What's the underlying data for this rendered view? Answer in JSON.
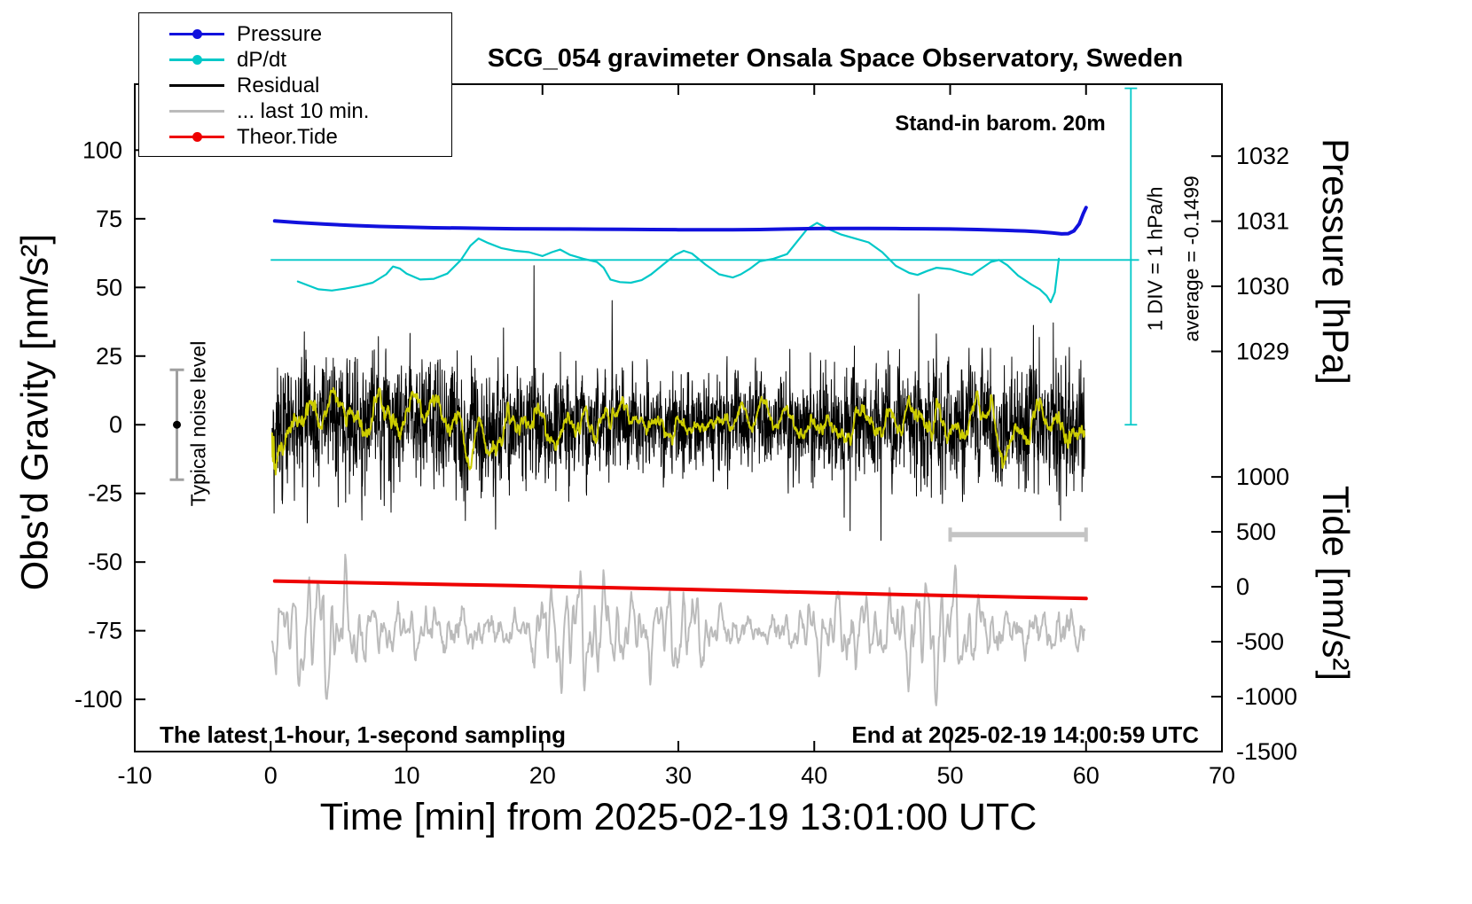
{
  "chart_data": {
    "type": "line",
    "title": "SCG_054 gravimeter Onsala Space Observatory, Sweden",
    "axes": {
      "x": {
        "label": "Time [min] from 2025-02-19 13:01:00 UTC",
        "range": [
          -10,
          70
        ],
        "ticks": [
          -10,
          0,
          10,
          20,
          30,
          40,
          50,
          60,
          70
        ]
      },
      "gravity": {
        "label": "Obs'd Gravity [nm/s²]",
        "range": [
          -119,
          124
        ],
        "ticks": [
          -100,
          -75,
          -50,
          -25,
          0,
          25,
          50,
          75,
          100
        ]
      },
      "pressure": {
        "label": "Pressure [hPa]",
        "ticks": [
          1032,
          1031,
          1030,
          1029
        ]
      },
      "tide": {
        "label": "Tide [nm/s²]",
        "ticks": [
          1000,
          500,
          0,
          -500,
          -1000,
          -1500
        ]
      }
    },
    "calibration": {
      "pressure": {
        "ref_value": 1029,
        "ref_g": 26.7,
        "g_per_unit": 23.7
      },
      "tide": {
        "ref_value": 0,
        "ref_g": -59,
        "g_per_unit": 0.04
      },
      "dpdt": {
        "ref_value": 0,
        "ref_g": 60,
        "g_per_unit": 23.7
      }
    },
    "annotations": {
      "barom": "Stand-in barom. 20m",
      "div": "1 DIV = 1 hPa/h",
      "average": "average = -0.1499",
      "noise": "Typical noise level",
      "sampling": "The latest 1-hour, 1-second sampling",
      "end": "End at 2025-02-19 14:00:59 UTC"
    },
    "legend": [
      {
        "label": "Pressure",
        "color": "#1111dd",
        "dot": true
      },
      {
        "label": "dP/dt",
        "color": "#00c8c8",
        "dot": true
      },
      {
        "label": "Residual",
        "color": "#000000",
        "dot": false
      },
      {
        "label": "... last 10 min.",
        "color": "#bbbbbb",
        "dot": false
      },
      {
        "label": "Theor.Tide",
        "color": "#ee0000",
        "dot": true
      }
    ],
    "markers": {
      "dpdt_zero_line": {
        "g": 60,
        "x_from": 0,
        "x_to": 63.9,
        "color": "#00c8c8"
      },
      "dpdt_div_axis": {
        "x": 63.3,
        "g_from": 0,
        "g_to": 122.5,
        "color": "#00c8c8"
      },
      "noise_errorbar": {
        "x": -6.9,
        "center_g": 0,
        "half_height_g": 20,
        "color": "#a0a0a0",
        "dot_color": "#000000"
      },
      "last10_scalebar": {
        "g": -40,
        "x_from": 50,
        "x_to": 60,
        "color": "#c4c4c4"
      }
    },
    "series": [
      {
        "name": "Pressure",
        "axis": "pressure",
        "color": "#1111dd",
        "width": 4,
        "points": [
          [
            0.3,
            1031.005
          ],
          [
            2,
            1030.98
          ],
          [
            4,
            1030.955
          ],
          [
            6,
            1030.935
          ],
          [
            8,
            1030.92
          ],
          [
            10,
            1030.91
          ],
          [
            12,
            1030.9
          ],
          [
            14,
            1030.895
          ],
          [
            16,
            1030.89
          ],
          [
            18,
            1030.885
          ],
          [
            20,
            1030.883
          ],
          [
            22,
            1030.88
          ],
          [
            24,
            1030.878
          ],
          [
            26,
            1030.875
          ],
          [
            28,
            1030.872
          ],
          [
            30,
            1030.87
          ],
          [
            32,
            1030.868
          ],
          [
            34,
            1030.868
          ],
          [
            36,
            1030.872
          ],
          [
            38,
            1030.88
          ],
          [
            40,
            1030.888
          ],
          [
            42,
            1030.89
          ],
          [
            44,
            1030.89
          ],
          [
            46,
            1030.888
          ],
          [
            48,
            1030.884
          ],
          [
            50,
            1030.88
          ],
          [
            52,
            1030.872
          ],
          [
            54,
            1030.86
          ],
          [
            55.5,
            1030.85
          ],
          [
            56.5,
            1030.838
          ],
          [
            57.5,
            1030.82
          ],
          [
            58.2,
            1030.806
          ],
          [
            58.7,
            1030.81
          ],
          [
            59.1,
            1030.85
          ],
          [
            59.5,
            1030.96
          ],
          [
            59.8,
            1031.12
          ],
          [
            60,
            1031.21
          ]
        ]
      },
      {
        "name": "dP/dt",
        "axis": "dpdt",
        "color": "#00c8c8",
        "width": 2.2,
        "points": [
          [
            2,
            -0.33
          ],
          [
            3.5,
            -0.45
          ],
          [
            4.5,
            -0.47
          ],
          [
            5.5,
            -0.44
          ],
          [
            6.5,
            -0.4
          ],
          [
            7.5,
            -0.35
          ],
          [
            8.5,
            -0.22
          ],
          [
            9,
            -0.1
          ],
          [
            9.5,
            -0.13
          ],
          [
            10,
            -0.21
          ],
          [
            11,
            -0.3
          ],
          [
            12,
            -0.29
          ],
          [
            13,
            -0.21
          ],
          [
            14,
            0.0
          ],
          [
            14.7,
            0.22
          ],
          [
            15.3,
            0.33
          ],
          [
            16,
            0.26
          ],
          [
            17,
            0.18
          ],
          [
            18,
            0.14
          ],
          [
            19,
            0.12
          ],
          [
            20,
            0.06
          ],
          [
            20.7,
            0.12
          ],
          [
            21.3,
            0.16
          ],
          [
            22,
            0.08
          ],
          [
            23,
            0.02
          ],
          [
            24,
            -0.03
          ],
          [
            24.5,
            -0.12
          ],
          [
            25,
            -0.3
          ],
          [
            25.7,
            -0.34
          ],
          [
            26.5,
            -0.35
          ],
          [
            27.3,
            -0.31
          ],
          [
            28,
            -0.22
          ],
          [
            29,
            -0.05
          ],
          [
            29.8,
            0.08
          ],
          [
            30.4,
            0.14
          ],
          [
            31,
            0.1
          ],
          [
            32,
            -0.07
          ],
          [
            33,
            -0.22
          ],
          [
            34,
            -0.27
          ],
          [
            34.6,
            -0.22
          ],
          [
            35.3,
            -0.13
          ],
          [
            36,
            -0.02
          ],
          [
            37,
            0.02
          ],
          [
            38,
            0.09
          ],
          [
            38.8,
            0.3
          ],
          [
            39.5,
            0.48
          ],
          [
            40.2,
            0.57
          ],
          [
            41,
            0.48
          ],
          [
            42,
            0.39
          ],
          [
            43,
            0.33
          ],
          [
            44,
            0.27
          ],
          [
            45,
            0.12
          ],
          [
            46,
            -0.09
          ],
          [
            47,
            -0.2
          ],
          [
            47.6,
            -0.23
          ],
          [
            48.3,
            -0.17
          ],
          [
            49,
            -0.12
          ],
          [
            50,
            -0.14
          ],
          [
            51,
            -0.2
          ],
          [
            51.6,
            -0.23
          ],
          [
            52.3,
            -0.13
          ],
          [
            53,
            -0.03
          ],
          [
            53.6,
            0.0
          ],
          [
            54.2,
            -0.08
          ],
          [
            55,
            -0.24
          ],
          [
            56,
            -0.38
          ],
          [
            56.6,
            -0.45
          ],
          [
            57.1,
            -0.55
          ],
          [
            57.4,
            -0.65
          ],
          [
            57.7,
            -0.5
          ],
          [
            57.9,
            -0.15
          ],
          [
            58,
            0.02
          ]
        ]
      },
      {
        "name": "Residual",
        "axis": "gravity",
        "color": "#000000",
        "width": 1,
        "generator": {
          "type": "ar_noise",
          "seed": 20250219,
          "n": 3600,
          "x_start": 0.1,
          "x_end": 59.9,
          "ar": 0.35,
          "sigma": 8.5,
          "spike_prob": 0.012,
          "spike_scale": 2.6,
          "mod_depth": 0.45
        },
        "note": "1-second residual, mostly within ±30 nm/s², spikes to ±48"
      },
      {
        "name": "Residual smoothed",
        "axis": "gravity",
        "color": "#cccc00",
        "width": 2,
        "derived_from": "Residual",
        "window": 51,
        "gain": 2.2,
        "in_legend": false
      },
      {
        "name": "... last 10 min.",
        "axis": "gravity",
        "color": "#bbbbbb",
        "width": 2,
        "generator": {
          "type": "wave",
          "seed": 77,
          "n": 1200,
          "x_start": 0.1,
          "x_end": 59.9,
          "center": -75,
          "base_amp": 11,
          "components": [
            [
              1.05,
              0.5
            ],
            [
              1.85,
              0.35
            ],
            [
              0.47,
              0.45
            ],
            [
              3.05,
              0.22
            ]
          ],
          "amp_mod": [
            [
              0.045,
              0.55
            ],
            [
              0.11,
              0.35
            ]
          ],
          "noise": 1.2
        },
        "note": "last 10 minutes of residual, re-scaled, oscillating around -75 nm/s²"
      },
      {
        "name": "Theor.Tide",
        "axis": "tide",
        "color": "#ee0000",
        "width": 4,
        "points": [
          [
            0.3,
            52
          ],
          [
            6,
            38
          ],
          [
            12,
            24
          ],
          [
            18,
            10
          ],
          [
            24,
            -6
          ],
          [
            30,
            -22
          ],
          [
            36,
            -40
          ],
          [
            42,
            -58
          ],
          [
            48,
            -75
          ],
          [
            54,
            -91
          ],
          [
            60,
            -107
          ]
        ]
      }
    ]
  }
}
